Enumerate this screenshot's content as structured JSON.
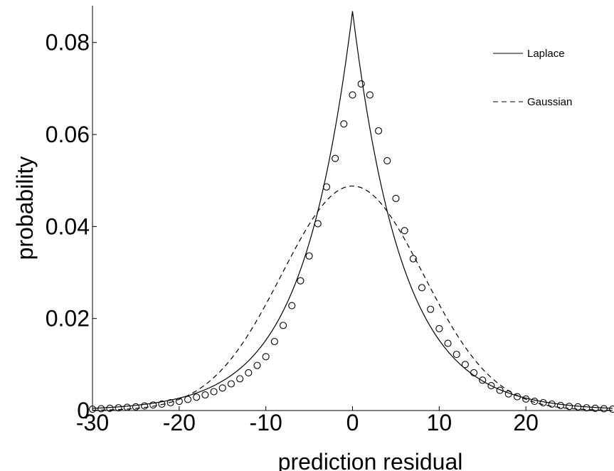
{
  "chart_data": {
    "type": "line",
    "xlabel": "prediction residual",
    "ylabel": "probability",
    "xlim": [
      -30,
      30
    ],
    "ylim": [
      0,
      0.088
    ],
    "x_ticks": [
      -30,
      -20,
      -10,
      0,
      10,
      20
    ],
    "x_tick_labels": [
      "-30",
      "-20",
      "-10",
      "0",
      "10",
      "20"
    ],
    "y_ticks": [
      0,
      0.02,
      0.04,
      0.06,
      0.08
    ],
    "y_tick_labels": [
      "0",
      "0.02",
      "0.04",
      "0.06",
      "0.08"
    ],
    "grid": false,
    "legend_position": "top-right",
    "series": [
      {
        "name": "Laplace",
        "style": "solid",
        "model": "laplace",
        "peak": 0.0868,
        "scale": 5.76,
        "color": "#000000"
      },
      {
        "name": "Gaussian",
        "style": "dashed",
        "model": "gaussian",
        "peak": 0.0488,
        "sigma": 8.17,
        "color": "#000000"
      },
      {
        "style": "markers",
        "marker": "circle",
        "color": "#000000",
        "x": [
          -30,
          -29,
          -28,
          -27,
          -26,
          -25,
          -24,
          -23,
          -22,
          -21,
          -20,
          -19,
          -18,
          -17,
          -16,
          -15,
          -14,
          -13,
          -12,
          -11,
          -10,
          -9,
          -8,
          -7,
          -6,
          -5,
          -4,
          -3,
          -2,
          -1,
          0,
          1,
          2,
          3,
          4,
          5,
          6,
          7,
          8,
          9,
          10,
          11,
          12,
          13,
          14,
          15,
          16,
          17,
          18,
          19,
          20,
          21,
          22,
          23,
          24,
          25,
          26,
          27,
          28,
          29,
          30
        ],
        "y": [
          0.0003,
          0.0004,
          0.0005,
          0.0006,
          0.0007,
          0.0008,
          0.001,
          0.0012,
          0.0014,
          0.0017,
          0.002,
          0.0024,
          0.0029,
          0.0034,
          0.0041,
          0.0049,
          0.0058,
          0.0069,
          0.0082,
          0.0098,
          0.0117,
          0.015,
          0.0185,
          0.0228,
          0.0282,
          0.0336,
          0.0406,
          0.0486,
          0.0548,
          0.0623,
          0.0686,
          0.071,
          0.0686,
          0.0608,
          0.0543,
          0.0461,
          0.0391,
          0.033,
          0.0267,
          0.022,
          0.0178,
          0.0146,
          0.0122,
          0.01,
          0.0082,
          0.0066,
          0.0054,
          0.0044,
          0.0036,
          0.003,
          0.0025,
          0.002,
          0.0017,
          0.0014,
          0.0011,
          0.0009,
          0.0008,
          0.0006,
          0.0005,
          0.0004,
          0.0003
        ]
      }
    ]
  }
}
